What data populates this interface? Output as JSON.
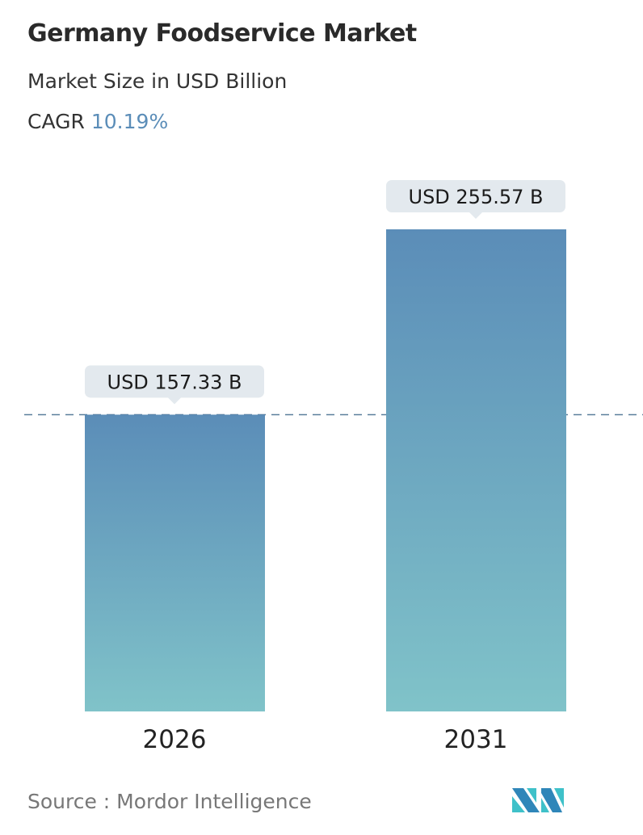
{
  "title": "Germany Foodservice Market",
  "subtitle": "Market Size in USD Billion",
  "cagr": {
    "label": "CAGR",
    "value": "10.19%"
  },
  "source": "Source :  Mordor Intelligence",
  "logo_text": "Mordor Intelligence",
  "colors": {
    "bar_top": "#5b8db8",
    "bar_bottom": "#80c3c9",
    "callout_bg": "#e3e9ee",
    "cagr": "#5b8db8",
    "dashed_line": "#5b7f9c"
  },
  "chart_data": {
    "type": "bar",
    "categories": [
      "2026",
      "2031"
    ],
    "values": [
      157.33,
      255.57
    ],
    "data_labels": [
      "USD 157.33 B",
      "USD 255.57 B"
    ],
    "title": "Germany Foodservice Market",
    "ylabel": "Market Size in USD Billion",
    "grid": false,
    "reference_line": 157.33
  }
}
